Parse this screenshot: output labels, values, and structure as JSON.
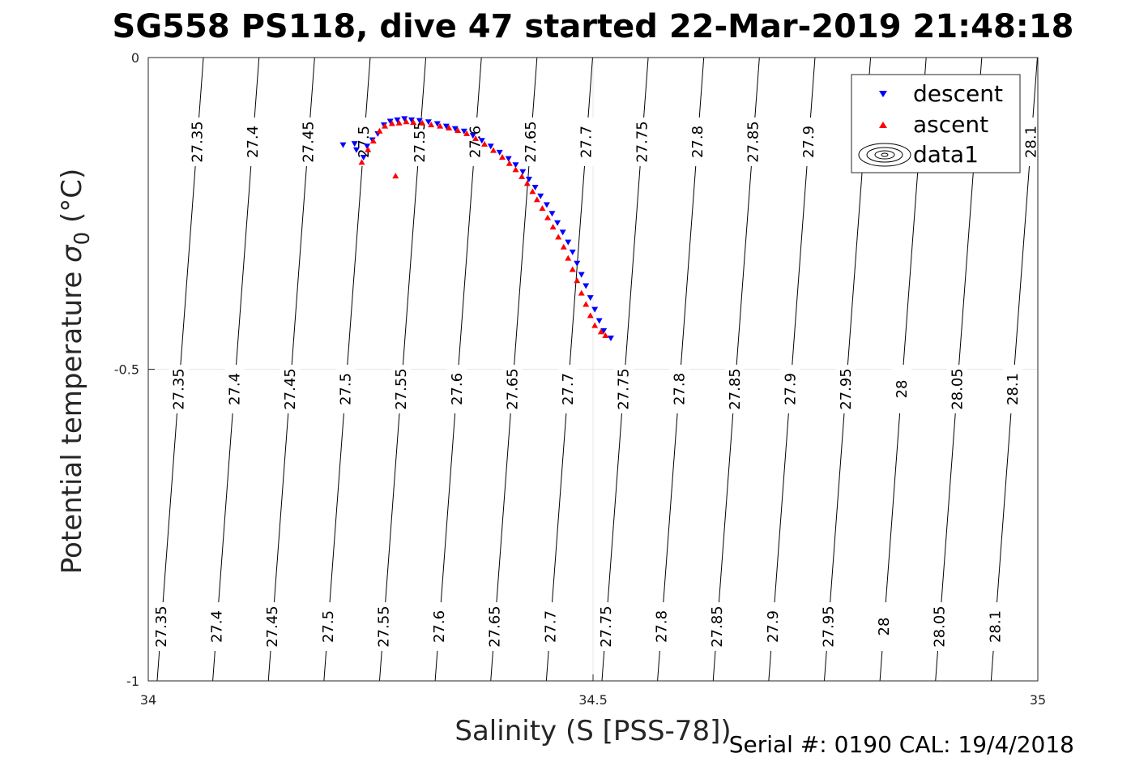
{
  "title": "SG558 PS118, dive 47 started 22-Mar-2019 21:48:18",
  "footer": "Serial #: 0190  CAL: 19/4/2018",
  "chart_data": {
    "type": "scatter",
    "xlabel": "Salinity (S [PSS-78])",
    "ylabel_main": "Potential temperature ",
    "ylabel_symbol": "σ",
    "ylabel_sub": "0",
    "ylabel_unit": " (°C)",
    "xlim": [
      34,
      35
    ],
    "ylim": [
      -1,
      0
    ],
    "xticks": [
      "34",
      "34.5",
      "35"
    ],
    "yticks": [
      "0",
      "-0.5",
      "-1"
    ],
    "grid": true,
    "legend_position": "top-right",
    "legend": [
      "descent",
      "ascent",
      "data1"
    ],
    "colors": {
      "descent": "#0000ff",
      "ascent": "#ff0000",
      "contour": "#000000"
    },
    "contours": [
      {
        "level": "27.35",
        "label_top": "27.35",
        "label_mid": "27.35",
        "label_bot": "27.35"
      },
      {
        "level": "27.4",
        "label_top": "27.4",
        "label_mid": "27.4",
        "label_bot": "27.4"
      },
      {
        "level": "27.45",
        "label_top": "27.45",
        "label_mid": "27.45",
        "label_bot": "27.45"
      },
      {
        "level": "27.5",
        "label_top": "27.5",
        "label_mid": "27.5",
        "label_bot": "27.5"
      },
      {
        "level": "27.55",
        "label_top": "27.55",
        "label_mid": "27.55",
        "label_bot": "27.55"
      },
      {
        "level": "27.6",
        "label_top": "27.6",
        "label_mid": "27.6",
        "label_bot": "27.6"
      },
      {
        "level": "27.65",
        "label_top": "27.65",
        "label_mid": "27.65",
        "label_bot": "27.65"
      },
      {
        "level": "27.7",
        "label_top": "27.7",
        "label_mid": "27.7",
        "label_bot": "27.7"
      },
      {
        "level": "27.75",
        "label_top": "27.75",
        "label_mid": "27.75",
        "label_bot": "27.75"
      },
      {
        "level": "27.8",
        "label_top": "27.8",
        "label_mid": "27.8",
        "label_bot": "27.8"
      },
      {
        "level": "27.85",
        "label_top": "27.85",
        "label_mid": "27.85",
        "label_bot": "27.85"
      },
      {
        "level": "27.9",
        "label_top": "27.9",
        "label_mid": "27.9",
        "label_bot": "27.9"
      },
      {
        "level": "27.95",
        "label_top": "",
        "label_mid": "27.95",
        "label_bot": "27.95"
      },
      {
        "level": "28",
        "label_top": "",
        "label_mid": "28",
        "label_bot": "28"
      },
      {
        "level": "28.05",
        "label_top": "",
        "label_mid": "28.05",
        "label_bot": "28.05"
      },
      {
        "level": "28.1",
        "label_top": "28.1",
        "label_mid": "28.1",
        "label_bot": "28.1"
      }
    ],
    "series": [
      {
        "name": "descent",
        "points": [
          [
            34.219,
            -0.14
          ],
          [
            34.232,
            -0.138
          ],
          [
            34.234,
            -0.148
          ],
          [
            34.242,
            -0.16
          ],
          [
            34.246,
            -0.142
          ],
          [
            34.252,
            -0.132
          ],
          [
            34.258,
            -0.122
          ],
          [
            34.265,
            -0.108
          ],
          [
            34.272,
            -0.102
          ],
          [
            34.28,
            -0.1
          ],
          [
            34.288,
            -0.098
          ],
          [
            34.296,
            -0.1
          ],
          [
            34.305,
            -0.101
          ],
          [
            34.315,
            -0.103
          ],
          [
            34.325,
            -0.106
          ],
          [
            34.335,
            -0.11
          ],
          [
            34.345,
            -0.114
          ],
          [
            34.355,
            -0.118
          ],
          [
            34.365,
            -0.125
          ],
          [
            34.375,
            -0.133
          ],
          [
            34.385,
            -0.142
          ],
          [
            34.395,
            -0.152
          ],
          [
            34.405,
            -0.162
          ],
          [
            34.413,
            -0.172
          ],
          [
            34.421,
            -0.183
          ],
          [
            34.428,
            -0.195
          ],
          [
            34.435,
            -0.208
          ],
          [
            34.441,
            -0.222
          ],
          [
            34.448,
            -0.236
          ],
          [
            34.454,
            -0.25
          ],
          [
            34.46,
            -0.265
          ],
          [
            34.466,
            -0.28
          ],
          [
            34.472,
            -0.296
          ],
          [
            34.477,
            -0.312
          ],
          [
            34.482,
            -0.33
          ],
          [
            34.487,
            -0.348
          ],
          [
            34.492,
            -0.366
          ],
          [
            34.497,
            -0.385
          ],
          [
            34.502,
            -0.404
          ],
          [
            34.507,
            -0.422
          ],
          [
            34.512,
            -0.438
          ],
          [
            34.52,
            -0.45
          ]
        ]
      },
      {
        "name": "ascent",
        "points": [
          [
            34.24,
            -0.168
          ],
          [
            34.247,
            -0.148
          ],
          [
            34.253,
            -0.134
          ],
          [
            34.26,
            -0.118
          ],
          [
            34.266,
            -0.11
          ],
          [
            34.274,
            -0.106
          ],
          [
            34.282,
            -0.105
          ],
          [
            34.29,
            -0.103
          ],
          [
            34.298,
            -0.104
          ],
          [
            34.308,
            -0.105
          ],
          [
            34.318,
            -0.108
          ],
          [
            34.328,
            -0.11
          ],
          [
            34.338,
            -0.113
          ],
          [
            34.348,
            -0.117
          ],
          [
            34.358,
            -0.122
          ],
          [
            34.368,
            -0.13
          ],
          [
            34.378,
            -0.139
          ],
          [
            34.388,
            -0.149
          ],
          [
            34.398,
            -0.16
          ],
          [
            34.406,
            -0.17
          ],
          [
            34.413,
            -0.18
          ],
          [
            34.42,
            -0.191
          ],
          [
            34.426,
            -0.202
          ],
          [
            34.432,
            -0.215
          ],
          [
            34.437,
            -0.228
          ],
          [
            34.443,
            -0.242
          ],
          [
            34.449,
            -0.257
          ],
          [
            34.455,
            -0.272
          ],
          [
            34.461,
            -0.288
          ],
          [
            34.467,
            -0.304
          ],
          [
            34.472,
            -0.322
          ],
          [
            34.477,
            -0.34
          ],
          [
            34.482,
            -0.358
          ],
          [
            34.487,
            -0.378
          ],
          [
            34.492,
            -0.396
          ],
          [
            34.497,
            -0.414
          ],
          [
            34.502,
            -0.43
          ],
          [
            34.509,
            -0.44
          ],
          [
            34.514,
            -0.446
          ],
          [
            34.278,
            -0.19
          ]
        ]
      }
    ]
  }
}
